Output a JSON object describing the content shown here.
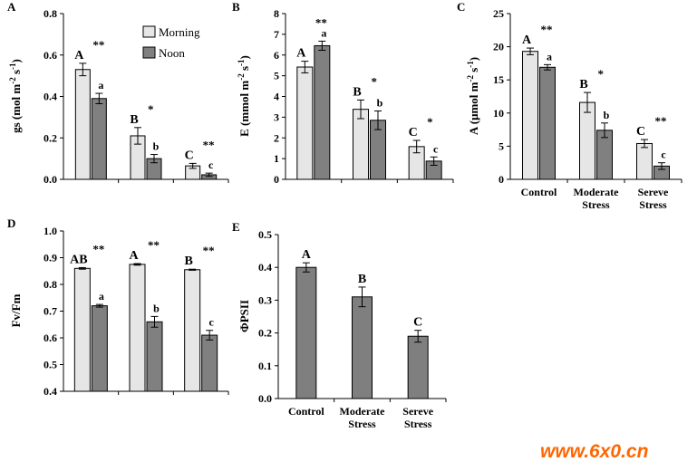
{
  "colors": {
    "morning": "#e6e6e6",
    "noon": "#808080",
    "single": "#7f7f7f",
    "watermark": "#ff6600"
  },
  "legend": {
    "morning": "Morning",
    "noon": "Noon"
  },
  "categories": [
    "Control",
    "Moderate\nStress",
    "Sereve\nStress"
  ],
  "watermark": "www.6x0.cn",
  "chart_data": [
    {
      "panel": "A",
      "type": "bar",
      "ylabel": "gs (mol m-2 s-1)",
      "ylim": [
        0,
        0.8
      ],
      "ticks": [
        "0.0",
        "0.2",
        "0.4",
        "0.6",
        "0.8"
      ],
      "series": [
        {
          "name": "Morning",
          "values": [
            0.53,
            0.21,
            0.065
          ],
          "errors": [
            0.03,
            0.04,
            0.012
          ],
          "letters": [
            "A",
            "B",
            "C"
          ]
        },
        {
          "name": "Noon",
          "values": [
            0.39,
            0.1,
            0.022
          ],
          "errors": [
            0.025,
            0.02,
            0.008
          ],
          "letters": [
            "a",
            "b",
            "c"
          ]
        }
      ],
      "sig": [
        "**",
        "*",
        "**"
      ],
      "show_categories": false,
      "legend": true
    },
    {
      "panel": "B",
      "type": "bar",
      "ylabel": "E (mmol m-2 s-1)",
      "ylim": [
        0,
        8
      ],
      "ticks": [
        "0",
        "1",
        "2",
        "3",
        "4",
        "5",
        "6",
        "7",
        "8"
      ],
      "series": [
        {
          "name": "Morning",
          "values": [
            5.42,
            3.38,
            1.58
          ],
          "errors": [
            0.28,
            0.45,
            0.3
          ],
          "letters": [
            "A",
            "B",
            "C"
          ]
        },
        {
          "name": "Noon",
          "values": [
            6.45,
            2.85,
            0.88
          ],
          "errors": [
            0.22,
            0.45,
            0.2
          ],
          "letters": [
            "a",
            "b",
            "c"
          ]
        }
      ],
      "sig": [
        "**",
        "*",
        "*"
      ],
      "show_categories": false,
      "legend": false
    },
    {
      "panel": "C",
      "type": "bar",
      "ylabel": "A (μmol m-2 s-1)",
      "ylim": [
        0,
        25
      ],
      "ticks": [
        "0",
        "5",
        "10",
        "15",
        "20",
        "25"
      ],
      "series": [
        {
          "name": "Morning",
          "values": [
            19.3,
            11.6,
            5.4
          ],
          "errors": [
            0.5,
            1.5,
            0.6
          ],
          "letters": [
            "A",
            "B",
            "C"
          ]
        },
        {
          "name": "Noon",
          "values": [
            16.9,
            7.4,
            2.0
          ],
          "errors": [
            0.4,
            1.1,
            0.5
          ],
          "letters": [
            "a",
            "b",
            "c"
          ]
        }
      ],
      "sig": [
        "**",
        "*",
        "**"
      ],
      "show_categories": true,
      "legend": false
    },
    {
      "panel": "D",
      "type": "bar",
      "ylabel": "Fv/Fm",
      "ylim": [
        0.4,
        1.0
      ],
      "ticks": [
        "0.4",
        "0.5",
        "0.6",
        "0.7",
        "0.8",
        "0.9",
        "1.0"
      ],
      "series": [
        {
          "name": "Morning",
          "values": [
            0.86,
            0.875,
            0.855
          ],
          "errors": [
            0.003,
            0.003,
            0.002
          ],
          "letters": [
            "AB",
            "A",
            "B"
          ]
        },
        {
          "name": "Noon",
          "values": [
            0.72,
            0.66,
            0.61
          ],
          "errors": [
            0.005,
            0.02,
            0.018
          ],
          "letters": [
            "a",
            "b",
            "c"
          ]
        }
      ],
      "sig": [
        "**",
        "**",
        "**"
      ],
      "show_categories": false,
      "legend": false
    },
    {
      "panel": "E",
      "type": "bar",
      "ylabel": "ΦPSII",
      "ylim": [
        0,
        0.5
      ],
      "ticks": [
        "0.0",
        "0.1",
        "0.2",
        "0.3",
        "0.4",
        "0.5"
      ],
      "series": [
        {
          "values": [
            0.4,
            0.31,
            0.19
          ],
          "errors": [
            0.014,
            0.03,
            0.018
          ],
          "letters": [
            "A",
            "B",
            "C"
          ]
        }
      ],
      "sig": [],
      "show_categories": true,
      "legend": false
    }
  ]
}
